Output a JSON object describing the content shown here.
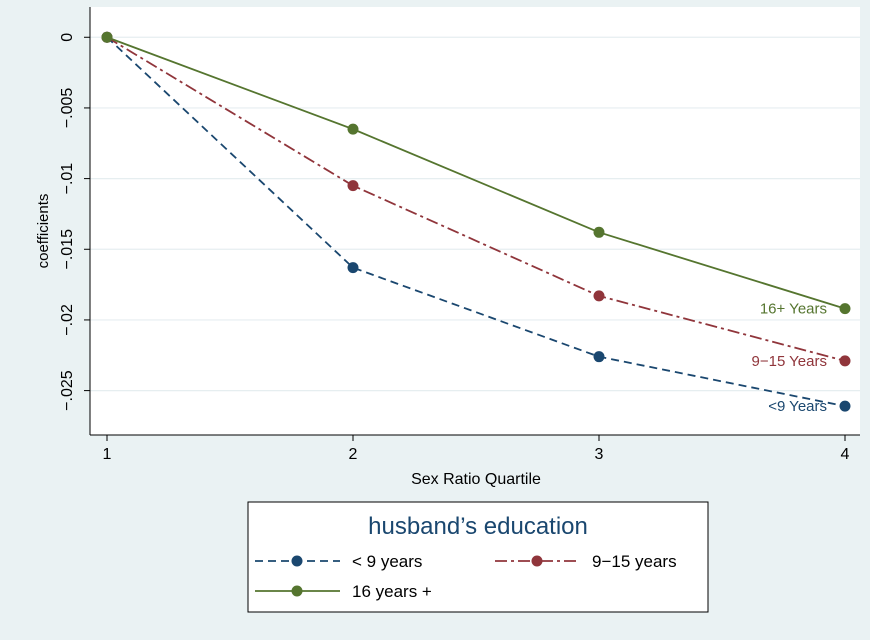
{
  "chart_data": {
    "type": "line",
    "title": "",
    "xlabel": "Sex Ratio Quartile",
    "ylabel": "coefficients",
    "x": [
      1,
      2,
      3,
      4
    ],
    "xlim": [
      1,
      4
    ],
    "ylim": [
      -0.028,
      0.002
    ],
    "x_ticks": [
      {
        "value": 1,
        "label": "1"
      },
      {
        "value": 2,
        "label": "2"
      },
      {
        "value": 3,
        "label": "3"
      },
      {
        "value": 4,
        "label": "4"
      }
    ],
    "y_ticks": [
      {
        "value": 0,
        "label": "0"
      },
      {
        "value": -0.005,
        "label": "-.005"
      },
      {
        "value": -0.01,
        "label": "-.01"
      },
      {
        "value": -0.015,
        "label": "-.015"
      },
      {
        "value": -0.02,
        "label": "-.02"
      },
      {
        "value": -0.025,
        "label": "-.025"
      }
    ],
    "grid": true,
    "series": [
      {
        "name": "< 9 years",
        "values": [
          0,
          -0.0163,
          -0.0226,
          -0.0261
        ],
        "color": "#1a476f",
        "line_style": "dashed",
        "end_label": "<9 Years"
      },
      {
        "name": "9−15 years",
        "values": [
          0,
          -0.0105,
          -0.0183,
          -0.0229
        ],
        "color": "#90353b",
        "line_style": "dash-dot",
        "end_label": "9−15 Years"
      },
      {
        "name": "16 years +",
        "values": [
          0,
          -0.0065,
          -0.0138,
          -0.0192
        ],
        "color": "#55752f",
        "line_style": "solid",
        "end_label": "16+ Years"
      }
    ],
    "legend": {
      "title": "husband’s education",
      "position": "bottom"
    }
  }
}
